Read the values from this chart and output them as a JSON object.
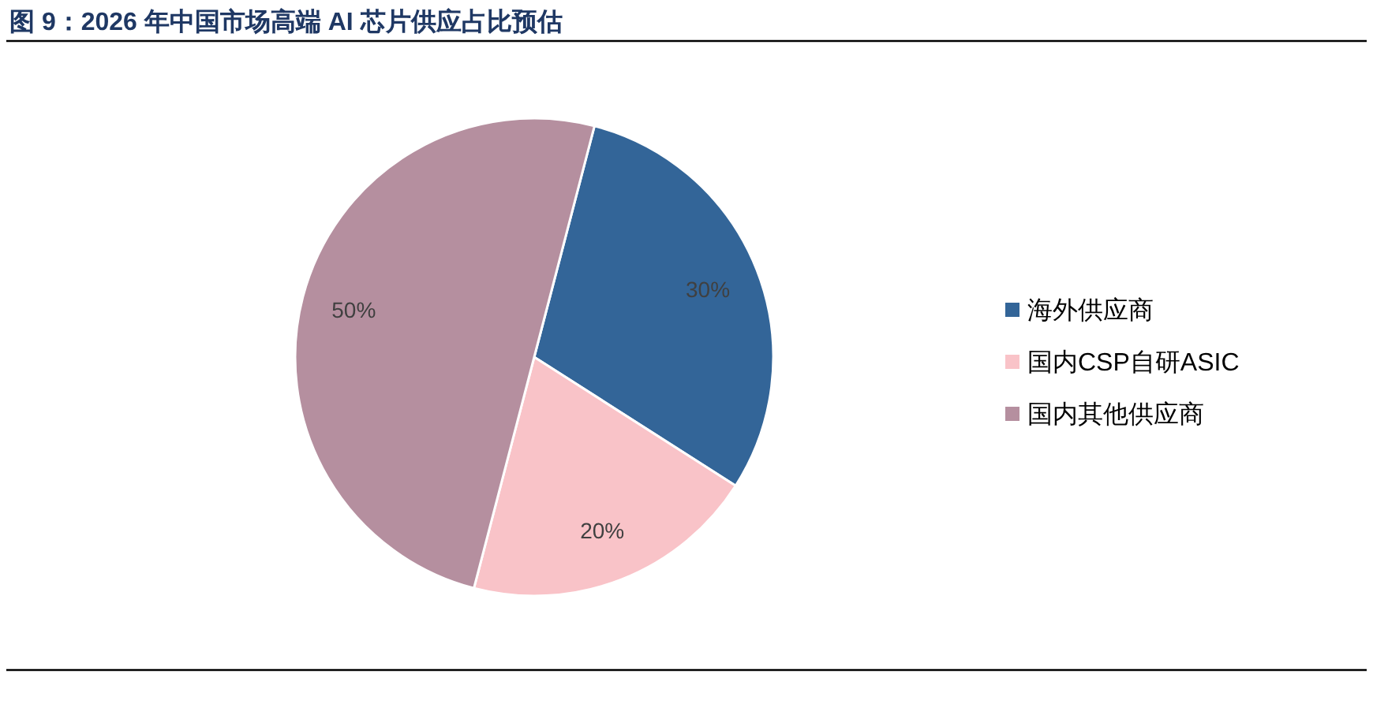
{
  "chart_data": {
    "type": "pie",
    "title": "图 9：2026 年中国市场高端 AI 芯片供应占比预估",
    "categories": [
      "海外供应商",
      "国内CSP自研ASIC",
      "国内其他供应商"
    ],
    "values": [
      30,
      20,
      50
    ],
    "colors": [
      "#336598",
      "#f9c3c8",
      "#b58f9f"
    ],
    "value_labels": [
      "30%",
      "20%",
      "50%"
    ],
    "legend": "right"
  }
}
